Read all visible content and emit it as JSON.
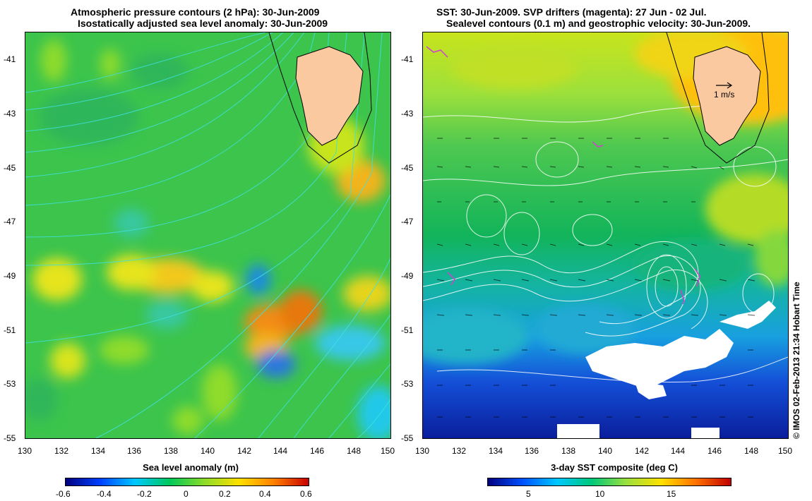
{
  "left": {
    "title_line1": "Atmospheric pressure contours (2 hPa): 30-Jun-2009",
    "title_line2": "Isostatically adjusted sea level anomaly: 30-Jun-2009",
    "colorbar_label": "Sea level anomaly (m)",
    "colorbar_ticks": [
      "-0.6",
      "-0.4",
      "-0.2",
      "0",
      "0.2",
      "0.4",
      "0.6"
    ]
  },
  "right": {
    "title_line1": "SST: 30-Jun-2009. SVP drifters (magenta): 27 Jun - 02 Jul.",
    "title_line2": "Sealevel contours (0.1 m) and geostrophic velocity: 30-Jun-2009.",
    "colorbar_label": "3-day SST composite (deg C)",
    "colorbar_ticks": [
      "5",
      "10",
      "15"
    ],
    "velocity_scale_label": "1 m/s"
  },
  "lat_ticks": [
    "-41",
    "-43",
    "-45",
    "-47",
    "-49",
    "-51",
    "-53",
    "-55"
  ],
  "lon_ticks": [
    "130",
    "132",
    "134",
    "136",
    "138",
    "140",
    "142",
    "144",
    "146",
    "148",
    "150"
  ],
  "credit": "© IMOS 02-Feb-2013 21:34 Hobart Time",
  "colors": {
    "land": "#fbc9a0",
    "sla_scale": [
      "#00007f",
      "#0040ff",
      "#00c8ff",
      "#00c85a",
      "#8cdc28",
      "#ffe000",
      "#ff8000",
      "#c80000"
    ],
    "sst_scale": [
      "#00007f",
      "#0050ff",
      "#00c8ff",
      "#00c878",
      "#9ce03c",
      "#ffe000",
      "#ff7000",
      "#c00000"
    ]
  }
}
